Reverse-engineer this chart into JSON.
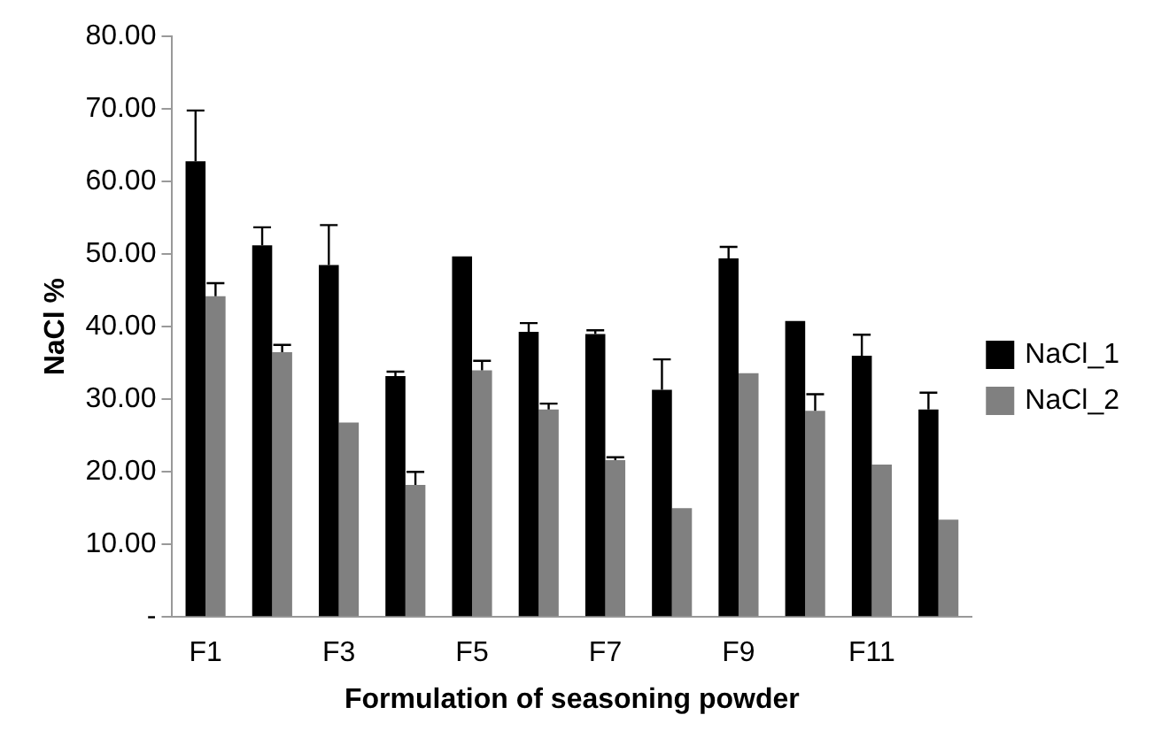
{
  "chart_data": {
    "type": "bar",
    "xlabel": "Formulation of seasoning powder",
    "ylabel": "NaCl %",
    "categories": [
      "F1",
      null,
      "F3",
      null,
      "F5",
      null,
      "F7",
      null,
      "F9",
      null,
      "F11",
      null
    ],
    "series": [
      {
        "name": "NaCl_1",
        "color": "#000000",
        "values": [
          62.8,
          51.2,
          48.5,
          33.2,
          49.7,
          39.3,
          39.0,
          31.3,
          49.4,
          40.8,
          36.0,
          28.6
        ],
        "errors": [
          [
            62.8,
            69.8
          ],
          [
            51.2,
            53.7
          ],
          [
            48.5,
            54.0
          ],
          [
            33.2,
            33.8
          ],
          null,
          [
            39.3,
            40.5
          ],
          [
            39.0,
            39.5
          ],
          [
            31.3,
            35.5
          ],
          [
            49.4,
            51.0
          ],
          null,
          [
            36.0,
            38.9
          ],
          [
            28.6,
            30.9
          ]
        ]
      },
      {
        "name": "NaCl_2",
        "color": "#808080",
        "values": [
          44.2,
          36.5,
          26.8,
          18.2,
          34.0,
          28.6,
          21.6,
          15.0,
          33.6,
          28.4,
          21.0,
          13.4
        ],
        "errors": [
          [
            44.2,
            46.0
          ],
          [
            36.5,
            37.5
          ],
          null,
          [
            18.2,
            20.0
          ],
          [
            34.0,
            35.3
          ],
          [
            28.6,
            29.4
          ],
          [
            21.6,
            22.0
          ],
          null,
          null,
          [
            28.4,
            30.7
          ],
          null,
          null
        ]
      }
    ],
    "ylim": [
      0,
      80
    ],
    "yticks": [
      {
        "value": 0,
        "label": "-"
      },
      {
        "value": 10,
        "label": "10.00"
      },
      {
        "value": 20,
        "label": "20.00"
      },
      {
        "value": 30,
        "label": "30.00"
      },
      {
        "value": 40,
        "label": "40.00"
      },
      {
        "value": 50,
        "label": "50.00"
      },
      {
        "value": 60,
        "label": "60.00"
      },
      {
        "value": 70,
        "label": "70.00"
      },
      {
        "value": 80,
        "label": "80.00"
      }
    ],
    "grid": false,
    "legend": "right"
  }
}
